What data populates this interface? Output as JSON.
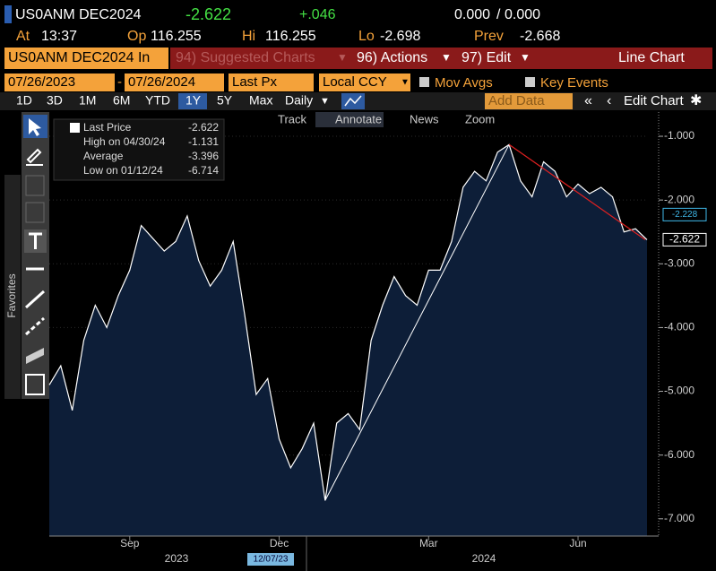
{
  "header": {
    "ticker": "US0ANM DEC2024",
    "last": "-2.622",
    "change": "+.046",
    "bid": "0.000",
    "ask": "0.000",
    "stats": [
      {
        "label": "At",
        "value": "13:37"
      },
      {
        "label": "Op",
        "value": "116.255"
      },
      {
        "label": "Hi",
        "value": "116.255"
      },
      {
        "label": "Lo",
        "value": "-2.698"
      },
      {
        "label": "Prev",
        "value": "-2.668"
      }
    ]
  },
  "menu": {
    "security": "US0ANM DEC2024 In",
    "suggested": "94) Suggested Charts",
    "actions": "96) Actions",
    "edit": "97) Edit",
    "view": "Line Chart"
  },
  "settings": {
    "start": "07/26/2023",
    "end": "07/26/2024",
    "field": "Last Px",
    "currency": "Local CCY",
    "checks": [
      "Mov Avgs",
      "Key Events"
    ]
  },
  "toolbar": {
    "periods": [
      "1D",
      "3D",
      "1M",
      "6M",
      "YTD",
      "1Y",
      "5Y",
      "Max"
    ],
    "active_period": "1Y",
    "frequency": "Daily",
    "add_data": "Add Data",
    "edit_chart": "Edit Chart",
    "tools": [
      "Track",
      "Annotate",
      "News",
      "Zoom"
    ],
    "favorites": "Favorites"
  },
  "chart_data": {
    "type": "area",
    "categories": [
      null,
      null,
      null,
      null,
      null,
      null,
      null,
      "Sep",
      null,
      null,
      null,
      null,
      null,
      null,
      null,
      null,
      null,
      null,
      null,
      null,
      "Dec",
      null,
      null,
      null,
      null,
      null,
      null,
      null,
      null,
      null,
      null,
      null,
      null,
      "Mar",
      null,
      null,
      null,
      null,
      null,
      null,
      null,
      null,
      null,
      null,
      null,
      null,
      "Jun",
      null,
      null,
      null,
      null,
      null,
      null
    ],
    "series": [
      {
        "name": "Last Price",
        "color": "#ffffff",
        "fill": "#0d1e38",
        "values": [
          -4.9,
          -4.6,
          -5.3,
          -4.2,
          -3.65,
          -4.0,
          -3.5,
          -3.1,
          -2.4,
          -2.6,
          -2.8,
          -2.65,
          -2.25,
          -2.95,
          -3.35,
          -3.1,
          -2.65,
          -3.8,
          -5.05,
          -4.8,
          -5.75,
          -6.2,
          -5.9,
          -5.5,
          -6.714,
          -5.5,
          -5.35,
          -5.6,
          -4.2,
          -3.65,
          -3.2,
          -3.5,
          -3.65,
          -3.1,
          -3.1,
          -2.65,
          -1.8,
          -1.55,
          -1.7,
          -1.25,
          -1.131,
          -1.7,
          -1.95,
          -1.4,
          -1.55,
          -1.95,
          -1.75,
          -1.9,
          -1.8,
          -1.95,
          -2.5,
          -2.45,
          -2.622
        ]
      }
    ],
    "ylim": [
      -7.27,
      -0.62
    ],
    "yticks": [
      {
        "value": -1,
        "label": "-1.000"
      },
      {
        "value": -2,
        "label": "-2.000"
      },
      {
        "value": -3,
        "label": "-3.000"
      },
      {
        "value": -4,
        "label": "-4.000"
      },
      {
        "value": -5,
        "label": "-5.000"
      },
      {
        "value": -6,
        "label": "-6.000"
      },
      {
        "value": -7,
        "label": "-7.000"
      }
    ],
    "year_labels": [
      "2023",
      "2024"
    ],
    "cursor_label": "12/07/23",
    "legend": [
      {
        "label": "Last Price",
        "value": -2.622
      },
      {
        "label": "High on 04/30/24",
        "value": -1.131
      },
      {
        "label": "Average",
        "value": -3.396
      },
      {
        "label": "Low on 01/12/24",
        "value": -6.714
      }
    ],
    "price_tags": [
      {
        "value": -2.228,
        "label": "-2.228",
        "color": "#3fb8e8"
      },
      {
        "value": -2.622,
        "label": "-2.622",
        "color": "#ffffff"
      }
    ]
  }
}
